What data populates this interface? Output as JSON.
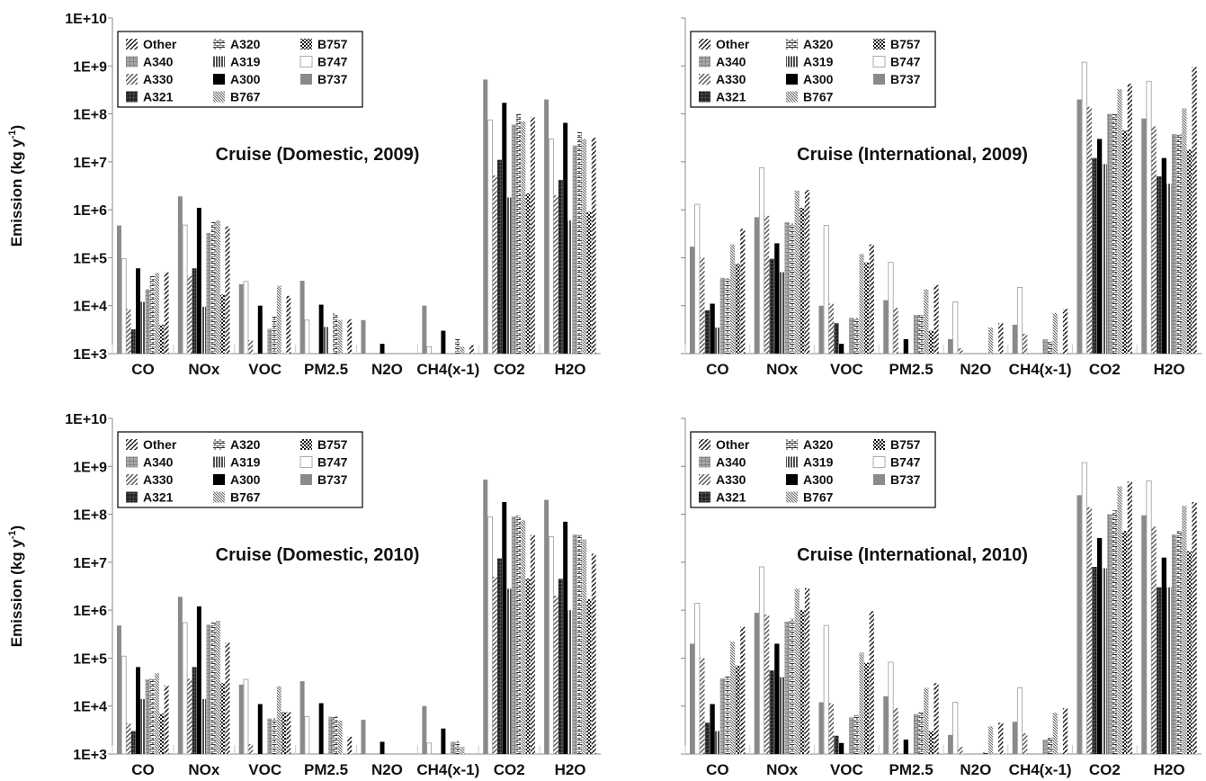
{
  "chart_data": {
    "type": "bar",
    "log_scale": true,
    "ylim": [
      1000,
      10000000000
    ],
    "yticks": [
      "1E+3",
      "1E+4",
      "1E+5",
      "1E+6",
      "1E+7",
      "1E+8",
      "1E+9",
      "1E+10"
    ],
    "ylabel": "Emission (kg y-1)",
    "categories": [
      "CO",
      "NOx",
      "VOC",
      "PM2.5",
      "N2O",
      "CH4(x-1)",
      "CO2",
      "H2O"
    ],
    "legend_order": [
      "Other",
      "A320",
      "B757",
      "A340",
      "A319",
      "B747",
      "A330",
      "A300",
      "B737",
      "A321",
      "B767"
    ],
    "legend_position": "top-left",
    "series_styles": {
      "B737": {
        "color": "#8a8a8a",
        "pattern": "solid"
      },
      "B747": {
        "color": "#ffffff",
        "pattern": "outline"
      },
      "A330": {
        "color": "#888888",
        "pattern": "diagonal"
      },
      "A321": {
        "color": "#333333",
        "pattern": "dark-grid"
      },
      "A300": {
        "color": "#000000",
        "pattern": "solid"
      },
      "A319": {
        "color": "#555555",
        "pattern": "vertical"
      },
      "A340": {
        "color": "#888888",
        "pattern": "grid"
      },
      "A320": {
        "color": "#666666",
        "pattern": "brick"
      },
      "B767": {
        "color": "#888888",
        "pattern": "fine-diagonal"
      },
      "B757": {
        "color": "#222222",
        "pattern": "checker"
      },
      "Other": {
        "color": "#222222",
        "pattern": "hatch"
      }
    },
    "series_order": [
      "B737",
      "B747",
      "A330",
      "A321",
      "A300",
      "A319",
      "A340",
      "A320",
      "B767",
      "B757",
      "Other"
    ],
    "panels": [
      {
        "title": "Cruise (Domestic, 2009)",
        "series": [
          {
            "name": "B737",
            "values": [
              470000,
              1900000,
              28000,
              33000,
              5000,
              10000,
              520000000,
              200000000
            ]
          },
          {
            "name": "B747",
            "values": [
              95000,
              480000,
              32000,
              5000,
              1000,
              1400,
              75000000,
              30000000
            ]
          },
          {
            "name": "A330",
            "values": [
              8500,
              42000,
              1900,
              1000,
              1000,
              1000,
              5200000,
              2000000
            ]
          },
          {
            "name": "A321",
            "values": [
              3200,
              60000,
              1000,
              1000,
              1000,
              1000,
              11000000,
              4200000
            ]
          },
          {
            "name": "A300",
            "values": [
              60000,
              1100000,
              10000,
              10500,
              1600,
              3000,
              170000000,
              65000000
            ]
          },
          {
            "name": "A319",
            "values": [
              12000,
              9500,
              1000,
              3600,
              1000,
              1000,
              1800000,
              600000
            ]
          },
          {
            "name": "A340",
            "values": [
              22000,
              330000,
              3300,
              1000,
              1000,
              1000,
              60000000,
              22000000
            ]
          },
          {
            "name": "A320",
            "values": [
              42000,
              550000,
              6200,
              7000,
              1000,
              2000,
              100000000,
              42000000
            ]
          },
          {
            "name": "B767",
            "values": [
              48000,
              600000,
              26000,
              5000,
              1000,
              1400,
              70000000,
              30000000
            ]
          },
          {
            "name": "B757",
            "values": [
              4000,
              17000,
              1000,
              1000,
              1000,
              1000,
              2200000,
              900000
            ]
          },
          {
            "name": "Other",
            "values": [
              50000,
              450000,
              16000,
              5200,
              1000,
              1500,
              85000000,
              32000000
            ]
          }
        ]
      },
      {
        "title": "Cruise (International, 2009)",
        "series": [
          {
            "name": "B737",
            "values": [
              170000,
              700000,
              10000,
              13000,
              2000,
              4000,
              200000000,
              80000000
            ]
          },
          {
            "name": "B747",
            "values": [
              1300000,
              7500000,
              470000,
              80000,
              12000,
              24000,
              1200000000,
              480000000
            ]
          },
          {
            "name": "A330",
            "values": [
              100000,
              750000,
              11000,
              9000,
              1300,
              2600,
              140000000,
              55000000
            ]
          },
          {
            "name": "A321",
            "values": [
              8000,
              95000,
              4300,
              1000,
              1000,
              1000,
              12000000,
              5000000
            ]
          },
          {
            "name": "A300",
            "values": [
              11000,
              200000,
              1600,
              2000,
              1000,
              1000,
              30000000,
              12000000
            ]
          },
          {
            "name": "A319",
            "values": [
              3500,
              50000,
              1000,
              1000,
              1000,
              1000,
              9000000,
              3500000
            ]
          },
          {
            "name": "A340",
            "values": [
              38000,
              550000,
              5600,
              6400,
              1000,
              2000,
              100000000,
              38000000
            ]
          },
          {
            "name": "A320",
            "values": [
              38000,
              520000,
              5600,
              6400,
              1000,
              1800,
              100000000,
              38000000
            ]
          },
          {
            "name": "B767",
            "values": [
              190000,
              2500000,
              120000,
              22000,
              3500,
              7000,
              330000000,
              130000000
            ]
          },
          {
            "name": "B757",
            "values": [
              75000,
              1100000,
              80000,
              3000,
              1000,
              1000,
              45000000,
              18000000
            ]
          },
          {
            "name": "Other",
            "values": [
              400000,
              2600000,
              190000,
              27000,
              4300,
              8600,
              430000000,
              950000000
            ]
          }
        ]
      },
      {
        "title": "Cruise (Domestic, 2010)",
        "series": [
          {
            "name": "B737",
            "values": [
              480000,
              1900000,
              28000,
              33000,
              5200,
              10000,
              530000000,
              200000000
            ]
          },
          {
            "name": "B747",
            "values": [
              110000,
              550000,
              36000,
              6000,
              1000,
              1700,
              88000000,
              34000000
            ]
          },
          {
            "name": "A330",
            "values": [
              4400,
              37000,
              1600,
              1000,
              1000,
              1000,
              5000000,
              2000000
            ]
          },
          {
            "name": "A321",
            "values": [
              3000,
              65000,
              1000,
              1000,
              1000,
              1000,
              12000000,
              4500000
            ]
          },
          {
            "name": "A300",
            "values": [
              65000,
              1200000,
              11000,
              11500,
              1800,
              3400,
              180000000,
              70000000
            ]
          },
          {
            "name": "A319",
            "values": [
              14000,
              14000,
              1000,
              1000,
              1000,
              1000,
              2800000,
              1000000
            ]
          },
          {
            "name": "A340",
            "values": [
              36000,
              500000,
              5500,
              6000,
              1000,
              1800,
              90000000,
              38000000
            ]
          },
          {
            "name": "A320",
            "values": [
              38000,
              560000,
              5600,
              6200,
              1000,
              1900,
              95000000,
              38000000
            ]
          },
          {
            "name": "B767",
            "values": [
              48000,
              600000,
              26000,
              5000,
              1000,
              1400,
              75000000,
              30000000
            ]
          },
          {
            "name": "B757",
            "values": [
              7000,
              30000,
              7500,
              1000,
              1000,
              1000,
              4600000,
              1700000
            ]
          },
          {
            "name": "Other",
            "values": [
              27000,
              210000,
              7600,
              2300,
              1000,
              1000,
              37000000,
              15000000
            ]
          }
        ]
      },
      {
        "title": "Cruise (International, 2010)",
        "series": [
          {
            "name": "B737",
            "values": [
              200000,
              880000,
              12000,
              16000,
              2500,
              4700,
              250000000,
              95000000
            ]
          },
          {
            "name": "B747",
            "values": [
              1400000,
              8000000,
              480000,
              82000,
              12000,
              24000,
              1200000000,
              500000000
            ]
          },
          {
            "name": "A330",
            "values": [
              100000,
              800000,
              11500,
              9000,
              1400,
              2700,
              140000000,
              55000000
            ]
          },
          {
            "name": "A321",
            "values": [
              4500,
              55000,
              2400,
              1000,
              1000,
              1000,
              8000000,
              3000000
            ]
          },
          {
            "name": "A300",
            "values": [
              11000,
              200000,
              1700,
              2000,
              1000,
              1000,
              32000000,
              12500000
            ]
          },
          {
            "name": "A319",
            "values": [
              3000,
              40000,
              1000,
              1000,
              1000,
              1000,
              7500000,
              3000000
            ]
          },
          {
            "name": "A340",
            "values": [
              38000,
              580000,
              5800,
              6800,
              1000,
              2000,
              100000000,
              38000000
            ]
          },
          {
            "name": "A320",
            "values": [
              42000,
              660000,
              6500,
              7500,
              1100,
              2200,
              120000000,
              45000000
            ]
          },
          {
            "name": "B767",
            "values": [
              220000,
              2800000,
              130000,
              24000,
              3800,
              7300,
              380000000,
              150000000
            ]
          },
          {
            "name": "B757",
            "values": [
              70000,
              1000000,
              80000,
              3000,
              1000,
              1000,
              45000000,
              17000000
            ]
          },
          {
            "name": "Other",
            "values": [
              450000,
              2900000,
              950000,
              30000,
              4500,
              9000,
              480000000,
              180000000
            ]
          }
        ]
      }
    ]
  }
}
